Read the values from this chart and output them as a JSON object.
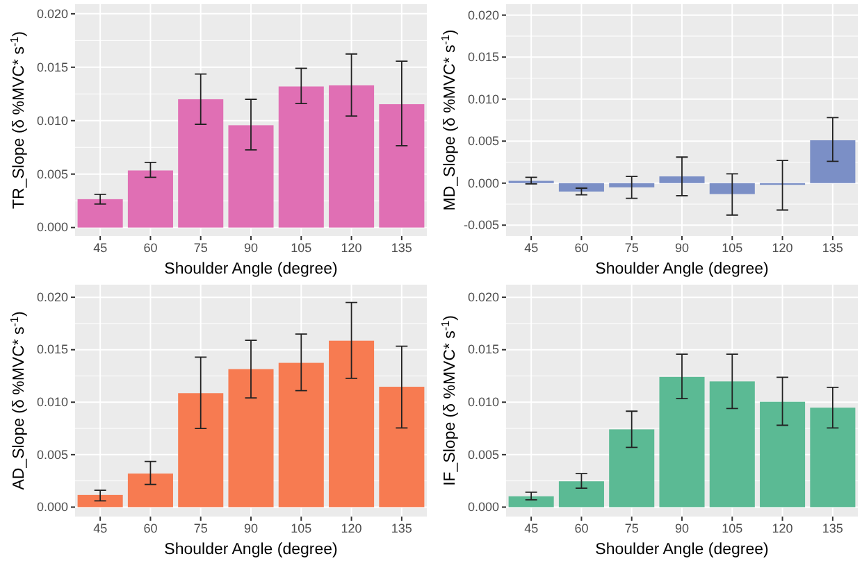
{
  "chart_data": [
    {
      "type": "bar",
      "xlabel": "Shoulder Angle (degree)",
      "ylabel": "TR_Slope (δ %MVC* s$^{-1}$)",
      "categories": [
        "45",
        "60",
        "75",
        "90",
        "105",
        "120",
        "135"
      ],
      "series": [
        {
          "color": "#e06fb4",
          "values": [
            0.00265,
            0.00534,
            0.012,
            0.00957,
            0.0132,
            0.0133,
            0.01154
          ],
          "errors": [
            [
              0.0022,
              0.0031
            ],
            [
              0.0047,
              0.0061
            ],
            [
              0.00966,
              0.01436
            ],
            [
              0.00727,
              0.012
            ],
            [
              0.0116,
              0.0149
            ],
            [
              0.01043,
              0.01624
            ],
            [
              0.00765,
              0.01556
            ]
          ]
        }
      ],
      "ylim": [
        -0.0008,
        0.0209
      ],
      "yticks": [
        {
          "value": 0,
          "label": "0.000"
        },
        {
          "value": 0.005,
          "label": "0.005"
        },
        {
          "value": 0.01,
          "label": "0.010"
        },
        {
          "value": 0.015,
          "label": "0.015"
        },
        {
          "value": 0.02,
          "label": "0.020"
        }
      ],
      "grid": true
    },
    {
      "type": "bar",
      "xlabel": "Shoulder Angle (degree)",
      "ylabel": "MD_Slope (δ %MVC* s$^{-1}$)",
      "categories": [
        "45",
        "60",
        "75",
        "90",
        "105",
        "120",
        "135"
      ],
      "series": [
        {
          "color": "#7b8fc6",
          "values": [
            0.00027,
            -0.001,
            -0.0005,
            0.0008,
            -0.0013,
            -0.0002,
            0.0051
          ],
          "errors": [
            [
              -0.0001,
              0.0007
            ],
            [
              -0.0014,
              -0.0006
            ],
            [
              -0.0018,
              0.0008
            ],
            [
              -0.0015,
              0.0031
            ],
            [
              -0.0038,
              0.0011
            ],
            [
              -0.0032,
              0.0027
            ],
            [
              0.0026,
              0.0078
            ]
          ]
        }
      ],
      "ylim": [
        -0.0063,
        0.0213
      ],
      "yticks": [
        {
          "value": -0.005,
          "label": "-0.005"
        },
        {
          "value": 0,
          "label": "0.000"
        },
        {
          "value": 0.005,
          "label": "0.005"
        },
        {
          "value": 0.01,
          "label": "0.010"
        },
        {
          "value": 0.015,
          "label": "0.015"
        },
        {
          "value": 0.02,
          "label": "0.020"
        }
      ],
      "grid": true
    },
    {
      "type": "bar",
      "xlabel": "Shoulder Angle (degree)",
      "ylabel": "AD_Slope (δ %MVC* s$^{-1}$)",
      "categories": [
        "45",
        "60",
        "75",
        "90",
        "105",
        "120",
        "135"
      ],
      "series": [
        {
          "color": "#f77b51",
          "values": [
            0.00116,
            0.0032,
            0.01086,
            0.01315,
            0.01375,
            0.01586,
            0.01147
          ],
          "errors": [
            [
              0.0006,
              0.0016
            ],
            [
              0.00216,
              0.00435
            ],
            [
              0.0075,
              0.0143
            ],
            [
              0.0104,
              0.0159
            ],
            [
              0.0111,
              0.0165
            ],
            [
              0.01228,
              0.0195
            ],
            [
              0.00754,
              0.01534
            ]
          ]
        }
      ],
      "ylim": [
        -0.0009,
        0.0212
      ],
      "yticks": [
        {
          "value": 0,
          "label": "0.000"
        },
        {
          "value": 0.005,
          "label": "0.005"
        },
        {
          "value": 0.01,
          "label": "0.010"
        },
        {
          "value": 0.015,
          "label": "0.015"
        },
        {
          "value": 0.02,
          "label": "0.020"
        }
      ],
      "grid": true
    },
    {
      "type": "bar",
      "xlabel": "Shoulder Angle (degree)",
      "ylabel": "IF_Slope (δ %MVC* s$^{-1}$)",
      "categories": [
        "45",
        "60",
        "75",
        "90",
        "105",
        "120",
        "135"
      ],
      "series": [
        {
          "color": "#5bba94",
          "values": [
            0.00103,
            0.00246,
            0.00741,
            0.01241,
            0.01198,
            0.01004,
            0.00948
          ],
          "errors": [
            [
              0.00069,
              0.00142
            ],
            [
              0.00181,
              0.00319
            ],
            [
              0.00569,
              0.00914
            ],
            [
              0.01034,
              0.01457
            ],
            [
              0.0094,
              0.01457
            ],
            [
              0.0078,
              0.01237
            ],
            [
              0.00754,
              0.01142
            ]
          ]
        }
      ],
      "ylim": [
        -0.0009,
        0.0212
      ],
      "yticks": [
        {
          "value": 0,
          "label": "0.000"
        },
        {
          "value": 0.005,
          "label": "0.005"
        },
        {
          "value": 0.01,
          "label": "0.010"
        },
        {
          "value": 0.015,
          "label": "0.015"
        },
        {
          "value": 0.02,
          "label": "0.020"
        }
      ],
      "grid": true
    }
  ]
}
